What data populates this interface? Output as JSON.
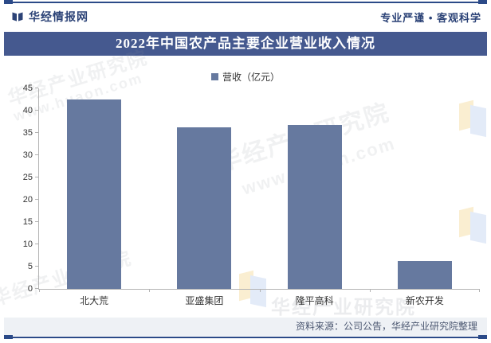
{
  "header": {
    "brand": "华经情报网",
    "slogan": "专业严谨 • 客观科学"
  },
  "title": "2022年中国农产品主要企业营业收入情况",
  "legend_label": "营收（亿元）",
  "chart_data": {
    "type": "bar",
    "title": "2022年中国农产品主要企业营业收入情况",
    "categories": [
      "北大荒",
      "亚盛集团",
      "隆平高科",
      "新农开发"
    ],
    "series": [
      {
        "name": "营收（亿元）",
        "values": [
          42.5,
          36.2,
          36.7,
          6.3
        ]
      }
    ],
    "xlabel": "",
    "ylabel": "",
    "ylim": [
      0,
      45
    ],
    "ytick_step": 5,
    "grid": false,
    "legend_position": "top-center"
  },
  "footer": {
    "source": "资料来源：公司公告，华经产业研究院整理"
  },
  "watermarks": {
    "brand_cn": "华经产业研究院",
    "site": "www.huaon.com"
  },
  "colors": {
    "accent-navy": "#2b4a88",
    "banner-blue": "#45598f",
    "bar-blue": "#66799f",
    "header-navy": "#2c4377",
    "footer-bg": "#eef1f5",
    "footer-text": "#4a5670",
    "axis-gray": "#b3b3b3",
    "text-dark": "#333333"
  }
}
